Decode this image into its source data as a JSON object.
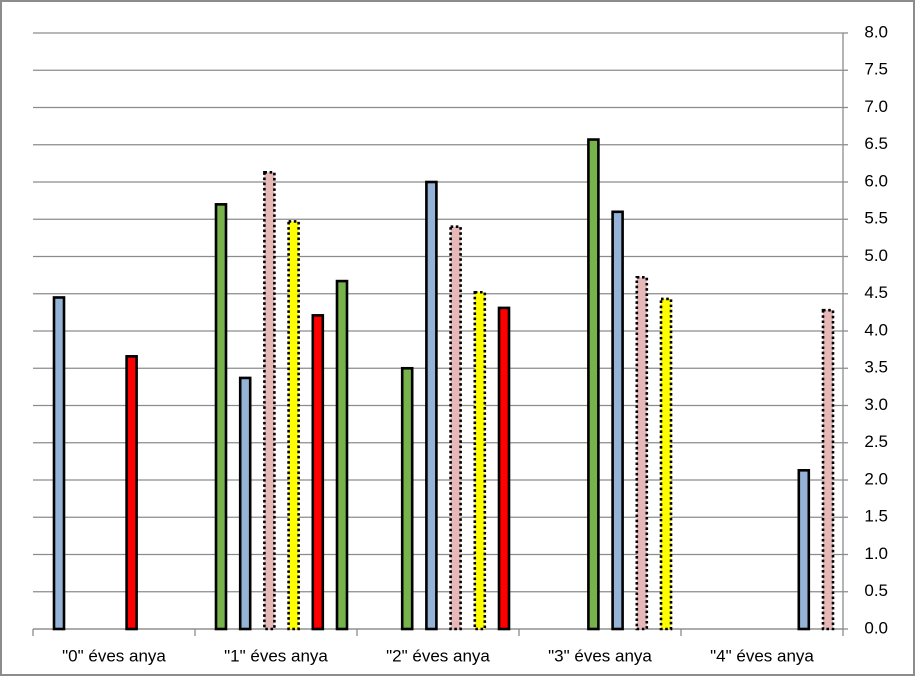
{
  "chart_data": {
    "type": "bar",
    "categories": [
      "\"0\" éves anya",
      "\"1\" éves anya",
      "\"2\" éves anya",
      "\"3\" éves anya",
      "\"4\" éves anya"
    ],
    "series": [
      {
        "values": [
          4.45,
          5.7,
          null,
          null,
          null
        ],
        "colors": [
          "#95b3d7",
          "#77b24a",
          null,
          null,
          null
        ],
        "dotted": [
          false,
          false,
          null,
          null,
          null
        ]
      },
      {
        "values": [
          null,
          3.37,
          3.5,
          null,
          null
        ],
        "colors": [
          null,
          "#95b3d7",
          "#77b24a",
          null,
          null
        ],
        "dotted": [
          null,
          false,
          false,
          null,
          null
        ]
      },
      {
        "values": [
          null,
          6.13,
          6.0,
          6.57,
          null
        ],
        "colors": [
          null,
          "#e6b9b8",
          "#95b3d7",
          "#77b24a",
          null
        ],
        "dotted": [
          null,
          true,
          false,
          false,
          null
        ]
      },
      {
        "values": [
          3.66,
          5.47,
          5.4,
          5.6,
          null
        ],
        "colors": [
          "#ff0000",
          "#ffff00",
          "#e6b9b8",
          "#95b3d7",
          null
        ],
        "dotted": [
          false,
          true,
          true,
          false,
          null
        ]
      },
      {
        "values": [
          null,
          4.21,
          4.52,
          4.72,
          2.13
        ],
        "colors": [
          null,
          "#ff0000",
          "#ffff00",
          "#e6b9b8",
          "#95b3d7"
        ],
        "dotted": [
          null,
          false,
          true,
          true,
          false
        ]
      },
      {
        "values": [
          null,
          4.67,
          4.31,
          4.43,
          4.28
        ],
        "colors": [
          null,
          "#77b24a",
          "#ff0000",
          "#ffff00",
          "#e6b9b8"
        ],
        "dotted": [
          null,
          false,
          false,
          true,
          true
        ]
      }
    ],
    "ylim": [
      0,
      8
    ],
    "yticks": [
      {
        "value": 0,
        "label": "0.0"
      },
      {
        "value": 0.5,
        "label": "0.5"
      },
      {
        "value": 1,
        "label": "1.0"
      },
      {
        "value": 1.5,
        "label": "1.5"
      },
      {
        "value": 2,
        "label": "2.0"
      },
      {
        "value": 2.5,
        "label": "2.5"
      },
      {
        "value": 3,
        "label": "3.0"
      },
      {
        "value": 3.5,
        "label": "3.5"
      },
      {
        "value": 4,
        "label": "4.0"
      },
      {
        "value": 4.5,
        "label": "4.5"
      },
      {
        "value": 5,
        "label": "5.0"
      },
      {
        "value": 5.5,
        "label": "5.5"
      },
      {
        "value": 6,
        "label": "6.0"
      },
      {
        "value": 6.5,
        "label": "6.5"
      },
      {
        "value": 7,
        "label": "7.0"
      },
      {
        "value": 7.5,
        "label": "7.5"
      },
      {
        "value": 8,
        "label": "8.0"
      }
    ],
    "y_axis_side": "right",
    "grid": true
  }
}
